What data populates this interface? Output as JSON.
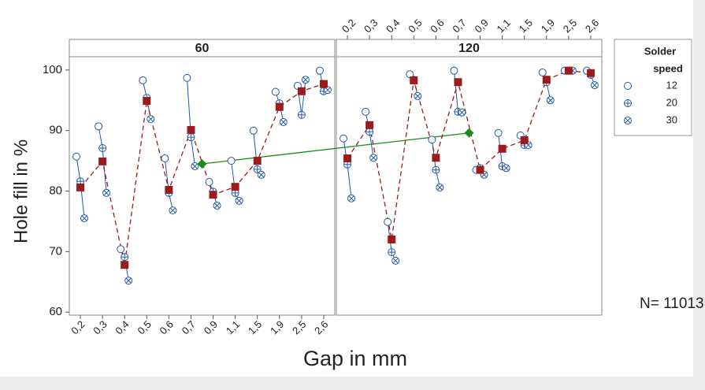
{
  "chart_data": {
    "type": "multi-vari",
    "x_label": "Gap in mm",
    "y_label": "Hole fill in %",
    "annotation": "N= 11013",
    "legend_title": [
      "Solder",
      "speed"
    ],
    "categories": [
      "0,2",
      "0,3",
      "0,4",
      "0,5",
      "0,6",
      "0,7",
      "0,9",
      "1,1",
      "1,5",
      "1,9",
      "2,5",
      "2,6"
    ],
    "ylim": [
      59.5,
      102.2
    ],
    "yticks": [
      60,
      70,
      80,
      90,
      100
    ],
    "point_color": "#1f5aa6",
    "mean_color": "#9b1c1c",
    "panel_mean_color": "#1a8c1a",
    "panels": [
      {
        "label": "60",
        "means": [
          80.6,
          84.9,
          67.8,
          94.9,
          80.2,
          90.1,
          79.4,
          80.7,
          85.0,
          93.9,
          96.5,
          97.7
        ],
        "overall_mean": 84.5
      },
      {
        "label": "120",
        "means": [
          85.4,
          90.9,
          72.0,
          98.3,
          85.5,
          98.0,
          83.5,
          87.0,
          88.4,
          98.4,
          99.9,
          99.5
        ],
        "overall_mean": 89.6
      }
    ],
    "series": [
      {
        "name": "12",
        "marker": "circle",
        "values": [
          [
            85.7,
            90.7,
            70.4,
            98.3,
            85.4,
            98.7,
            81.5,
            85.0,
            90.0,
            96.4,
            97.4,
            99.9
          ],
          [
            88.7,
            93.1,
            74.9,
            99.3,
            88.5,
            99.9,
            83.5,
            89.6,
            89.2,
            99.6,
            99.9,
            99.9
          ]
        ]
      },
      {
        "name": "20",
        "marker": "circle-plus",
        "values": [
          [
            81.6,
            87.1,
            69.1,
            95.4,
            79.7,
            88.9,
            79.9,
            79.7,
            83.6,
            94.5,
            92.6,
            96.5
          ],
          [
            84.4,
            89.8,
            69.9,
            98.4,
            83.5,
            93.1,
            83.8,
            84.1,
            87.6,
            98.0,
            99.9,
            99.2
          ]
        ]
      },
      {
        "name": "30",
        "marker": "circle-x",
        "values": [
          [
            75.5,
            79.7,
            65.2,
            91.9,
            76.8,
            84.1,
            77.6,
            78.4,
            82.7,
            91.4,
            98.4,
            96.7
          ],
          [
            78.8,
            85.5,
            68.5,
            95.7,
            80.6,
            93.0,
            82.7,
            83.8,
            87.6,
            95.0,
            99.9,
            97.5
          ]
        ]
      }
    ]
  }
}
